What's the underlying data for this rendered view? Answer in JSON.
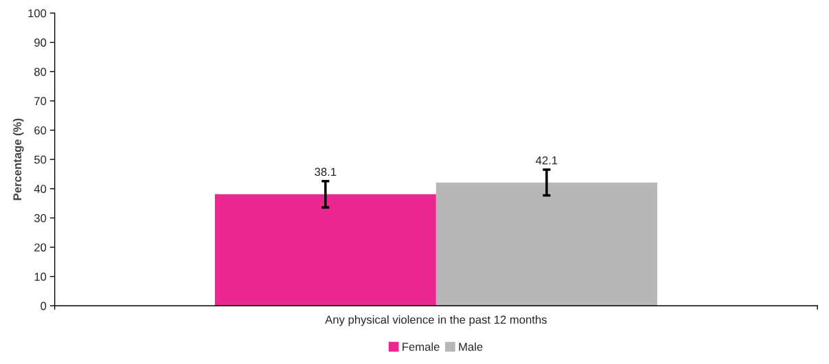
{
  "chart_data": {
    "type": "bar",
    "ylabel": "Percentage (%)",
    "categories": [
      "Any physical violence in the past 12 months"
    ],
    "series": [
      {
        "name": "Female",
        "color": "#ea2890",
        "values": [
          38.1
        ],
        "errors": [
          4.5
        ]
      },
      {
        "name": "Male",
        "color": "#b7b7b7",
        "values": [
          42.1
        ],
        "errors": [
          4.4
        ]
      }
    ],
    "ylim": [
      0,
      100
    ],
    "yticks": [
      0,
      10,
      20,
      30,
      40,
      50,
      60,
      70,
      80,
      90,
      100
    ],
    "data_labels": true,
    "legend": "bottom",
    "grid": false
  }
}
